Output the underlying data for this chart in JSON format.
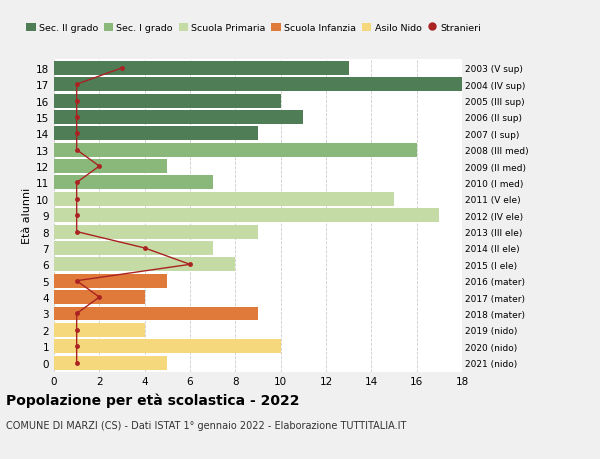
{
  "ages": [
    18,
    17,
    16,
    15,
    14,
    13,
    12,
    11,
    10,
    9,
    8,
    7,
    6,
    5,
    4,
    3,
    2,
    1,
    0
  ],
  "bar_values": [
    13,
    18,
    10,
    11,
    9,
    16,
    5,
    7,
    15,
    17,
    9,
    7,
    8,
    5,
    4,
    9,
    4,
    10,
    5
  ],
  "bar_colors": [
    "#4e7d56",
    "#4e7d56",
    "#4e7d56",
    "#4e7d56",
    "#4e7d56",
    "#8ab87a",
    "#8ab87a",
    "#8ab87a",
    "#c5dba6",
    "#c5dba6",
    "#c5dba6",
    "#c5dba6",
    "#c5dba6",
    "#e07a3a",
    "#e07a3a",
    "#e07a3a",
    "#f5d87c",
    "#f5d87c",
    "#f5d87c"
  ],
  "stranieri_values": [
    3,
    1,
    1,
    1,
    1,
    1,
    2,
    1,
    1,
    1,
    1,
    4,
    6,
    1,
    2,
    1,
    1,
    1,
    1
  ],
  "right_labels": [
    "2003 (V sup)",
    "2004 (IV sup)",
    "2005 (III sup)",
    "2006 (II sup)",
    "2007 (I sup)",
    "2008 (III med)",
    "2009 (II med)",
    "2010 (I med)",
    "2011 (V ele)",
    "2012 (IV ele)",
    "2013 (III ele)",
    "2014 (II ele)",
    "2015 (I ele)",
    "2016 (mater)",
    "2017 (mater)",
    "2018 (mater)",
    "2019 (nido)",
    "2020 (nido)",
    "2021 (nido)"
  ],
  "ylabel_left": "Età alunni",
  "title": "Popolazione per età scolastica - 2022",
  "subtitle": "COMUNE DI MARZI (CS) - Dati ISTAT 1° gennaio 2022 - Elaborazione TUTTITALIA.IT",
  "xlim": [
    0,
    18
  ],
  "xticks": [
    0,
    2,
    4,
    6,
    8,
    10,
    12,
    14,
    16,
    18
  ],
  "legend_labels": [
    "Sec. II grado",
    "Sec. I grado",
    "Scuola Primaria",
    "Scuola Infanzia",
    "Asilo Nido",
    "Stranieri"
  ],
  "legend_colors": [
    "#4e7d56",
    "#8ab87a",
    "#c5dba6",
    "#e07a3a",
    "#f5d87c",
    "#cc2222"
  ],
  "bar_height": 0.85,
  "bg_color": "#f0f0f0",
  "plot_bg_color": "#ffffff",
  "grid_color": "#cccccc",
  "stranieri_color": "#aa2222",
  "title_fontsize": 10,
  "subtitle_fontsize": 7
}
